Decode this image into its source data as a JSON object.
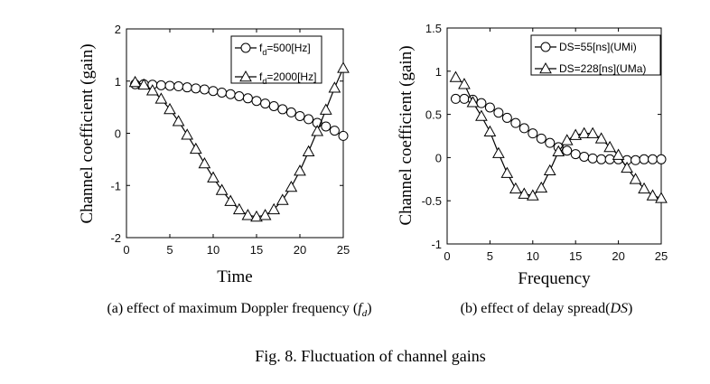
{
  "chart_data": [
    {
      "type": "line",
      "xlabel": "Time",
      "ylabel": "Channel coefficient (gain)",
      "xlim": [
        0,
        25
      ],
      "ylim": [
        -2,
        2
      ],
      "xticks": [
        "0",
        "5",
        "10",
        "15",
        "20",
        "25"
      ],
      "yticks": [
        "-2",
        "-1",
        "0",
        "1",
        "2"
      ],
      "grid": false,
      "legend_position": "top-right",
      "caption_pre": "(a) effect of maximum Doppler frequency (",
      "caption_var": "f",
      "caption_sub": "d",
      "caption_post": ")",
      "x": [
        1,
        2,
        3,
        4,
        5,
        6,
        7,
        8,
        9,
        10,
        11,
        12,
        13,
        14,
        15,
        16,
        17,
        18,
        19,
        20,
        21,
        22,
        23,
        24,
        25
      ],
      "series": [
        {
          "name": "f",
          "name_sub": "d",
          "name_rest": "=500[Hz]",
          "marker": "circle",
          "values": [
            0.94,
            0.94,
            0.93,
            0.92,
            0.91,
            0.9,
            0.88,
            0.86,
            0.84,
            0.81,
            0.78,
            0.75,
            0.71,
            0.67,
            0.62,
            0.57,
            0.52,
            0.46,
            0.4,
            0.33,
            0.27,
            0.2,
            0.13,
            0.05,
            -0.05
          ]
        },
        {
          "name": "f",
          "name_sub": "d",
          "name_rest": "=2000[Hz]",
          "marker": "triangle",
          "values": [
            0.98,
            0.93,
            0.82,
            0.66,
            0.46,
            0.23,
            -0.03,
            -0.3,
            -0.58,
            -0.85,
            -1.09,
            -1.3,
            -1.46,
            -1.57,
            -1.6,
            -1.57,
            -1.46,
            -1.28,
            -1.03,
            -0.72,
            -0.35,
            0.04,
            0.45,
            0.87,
            1.25
          ]
        }
      ]
    },
    {
      "type": "line",
      "xlabel": "Frequency",
      "ylabel": "Channel coefficient (gain)",
      "xlim": [
        0,
        25
      ],
      "ylim": [
        -1,
        1.5
      ],
      "xticks": [
        "0",
        "5",
        "10",
        "15",
        "20",
        "25"
      ],
      "yticks": [
        "-1",
        "-0.5",
        "0",
        "0.5",
        "1",
        "1.5"
      ],
      "grid": false,
      "legend_position": "top-right",
      "caption_pre": "(b) effect of delay spread(",
      "caption_var": "DS",
      "caption_sub": "",
      "caption_post": ")",
      "x": [
        1,
        2,
        3,
        4,
        5,
        6,
        7,
        8,
        9,
        10,
        11,
        12,
        13,
        14,
        15,
        16,
        17,
        18,
        19,
        20,
        21,
        22,
        23,
        24,
        25
      ],
      "series": [
        {
          "name": "DS=55[ns](UMi)",
          "name_sub": "",
          "name_rest": "",
          "marker": "circle",
          "values": [
            0.68,
            0.68,
            0.67,
            0.63,
            0.58,
            0.52,
            0.46,
            0.4,
            0.34,
            0.28,
            0.22,
            0.17,
            0.12,
            0.08,
            0.04,
            0.01,
            -0.01,
            -0.02,
            -0.02,
            -0.02,
            -0.03,
            -0.03,
            -0.02,
            -0.02,
            -0.02
          ]
        },
        {
          "name": "DS=228[ns](UMa)",
          "name_sub": "",
          "name_rest": "",
          "marker": "triangle",
          "values": [
            0.93,
            0.85,
            0.64,
            0.48,
            0.3,
            0.05,
            -0.18,
            -0.36,
            -0.42,
            -0.44,
            -0.35,
            -0.15,
            0.07,
            0.2,
            0.26,
            0.28,
            0.28,
            0.22,
            0.12,
            0.03,
            -0.12,
            -0.25,
            -0.36,
            -0.44,
            -0.47
          ]
        }
      ]
    }
  ],
  "figure_caption": "Fig. 8.   Fluctuation of channel gains"
}
